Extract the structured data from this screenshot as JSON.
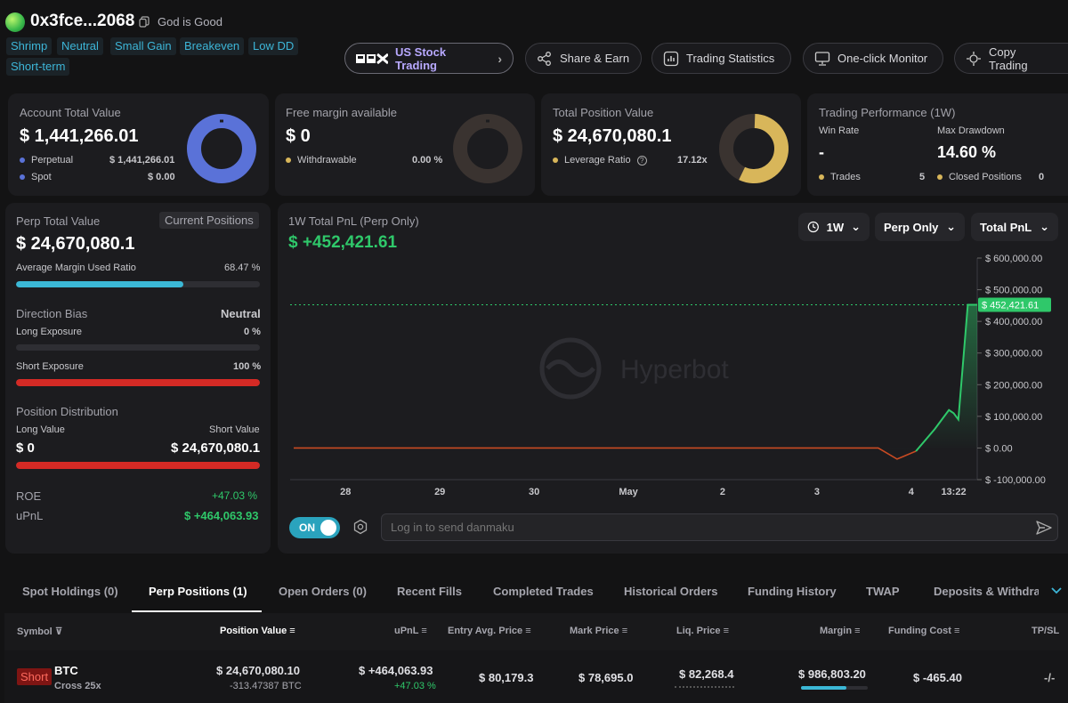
{
  "header": {
    "address": "0x3fce...2068",
    "nickname": "God is Good",
    "tags": [
      "Shrimp",
      "Neutral",
      "Small Gain",
      "Breakeven",
      "Low DD",
      "Short-term"
    ],
    "buttons": {
      "us_stock": "US Stock Trading",
      "share": "Share & Earn",
      "stats": "Trading Statistics",
      "monitor": "One-click Monitor",
      "copy": "Copy Trading"
    }
  },
  "account": {
    "label": "Account Total Value",
    "value": "$ 1,441,266.01",
    "perpetual_label": "Perpetual",
    "perpetual_value": "$ 1,441,266.01",
    "spot_label": "Spot",
    "spot_value": "$ 0.00"
  },
  "margin": {
    "label": "Free margin available",
    "value": "$ 0",
    "withdrawable_label": "Withdrawable",
    "withdrawable_value": "0.00 %"
  },
  "position_value": {
    "label": "Total Position Value",
    "value": "$ 24,670,080.1",
    "leverage_label": "Leverage Ratio",
    "leverage_value": "17.12x"
  },
  "performance": {
    "label": "Trading Performance (1W)",
    "winrate_label": "Win Rate",
    "winrate_value": "-",
    "drawdown_label": "Max Drawdown",
    "drawdown_value": "14.60 %",
    "trades_label": "Trades",
    "trades_value": "5",
    "closed_label": "Closed Positions",
    "closed_value": "0"
  },
  "perp": {
    "label": "Perp Total Value",
    "current_positions": "Current Positions",
    "value": "$ 24,670,080.1",
    "margin_ratio_label": "Average Margin Used Ratio",
    "margin_ratio_value": "68.47 %",
    "margin_ratio_fraction": 0.6847,
    "direction_label": "Direction Bias",
    "direction_value": "Neutral",
    "long_exp_label": "Long Exposure",
    "long_exp_value": "0 %",
    "short_exp_label": "Short Exposure",
    "short_exp_value": "100 %",
    "dist_label": "Position Distribution",
    "long_value_label": "Long Value",
    "short_value_label": "Short Value",
    "long_value": "$ 0",
    "short_value": "$ 24,670,080.1",
    "roe_label": "ROE",
    "roe_value": "+47.03 %",
    "upnl_label": "uPnL",
    "upnl_value": "$ +464,063.93"
  },
  "pnl_chart": {
    "title": "1W Total PnL (Perp Only)",
    "value": "$ +452,421.61",
    "period": "1W",
    "scope": "Perp Only",
    "metric": "Total PnL",
    "watermark": "Hyperbot",
    "current_label": "$ 452,421.61",
    "y_ticks": [
      "$ 600,000.00",
      "$ 500,000.00",
      "$ 400,000.00",
      "$ 300,000.00",
      "$ 200,000.00",
      "$ 100,000.00",
      "$ 0.00",
      "$ -100,000.00"
    ],
    "x_ticks": [
      "28",
      "29",
      "30",
      "May",
      "2",
      "3",
      "4",
      "13:22"
    ]
  },
  "chart_data": {
    "type": "area",
    "title": "1W Total PnL (Perp Only)",
    "ylim": [
      -100000,
      600000
    ],
    "y_ticks": [
      600000,
      500000,
      400000,
      300000,
      200000,
      100000,
      0,
      -100000
    ],
    "x_ticks": [
      "28",
      "29",
      "30",
      "May",
      "2",
      "3",
      "4",
      "13:22"
    ],
    "series": [
      {
        "x": [
          0,
          0.5,
          1,
          1.5,
          2,
          2.5,
          3,
          3.5,
          4,
          4.5,
          5,
          5.5,
          6,
          6.2,
          6.4,
          6.6,
          6.8,
          6.95,
          7.0,
          7.05,
          7.15,
          7.25
        ],
        "values": [
          0,
          0,
          0,
          0,
          0,
          0,
          0,
          0,
          0,
          0,
          0,
          0,
          0,
          0,
          -35000,
          -10000,
          60000,
          120000,
          110000,
          90000,
          452421.61,
          452421.61
        ]
      }
    ],
    "current_value": 452421.61
  },
  "danmaku": {
    "toggle": "ON",
    "placeholder": "Log in to send danmaku"
  },
  "tabs": [
    "Spot Holdings (0)",
    "Perp Positions (1)",
    "Open Orders (0)",
    "Recent Fills",
    "Completed Trades",
    "Historical Orders",
    "Funding History",
    "TWAP",
    "Deposits & Withdraw"
  ],
  "table": {
    "headers": {
      "symbol": "Symbol",
      "position_value": "Position Value",
      "upnl": "uPnL",
      "entry": "Entry Avg. Price",
      "mark": "Mark Price",
      "liq": "Liq. Price",
      "margin": "Margin",
      "funding": "Funding Cost",
      "tpsl": "TP/SL"
    },
    "row": {
      "side": "Short",
      "symbol": "BTC",
      "mode": "Cross 25x",
      "position_value": "$ 24,670,080.10",
      "size": "-313.47387 BTC",
      "upnl": "$ +464,063.93",
      "upnl_pct": "+47.03 %",
      "entry": "$ 80,179.3",
      "mark": "$ 78,695.0",
      "liq": "$ 82,268.4",
      "margin": "$ 986,803.20",
      "funding": "$ -465.40",
      "tpsl": "-/-"
    }
  },
  "colors": {
    "accent_blue": "#5a72d8",
    "gold": "#d8b65a",
    "green": "#2fc86a",
    "red": "#e0302d",
    "teal": "#3bb8d6"
  }
}
